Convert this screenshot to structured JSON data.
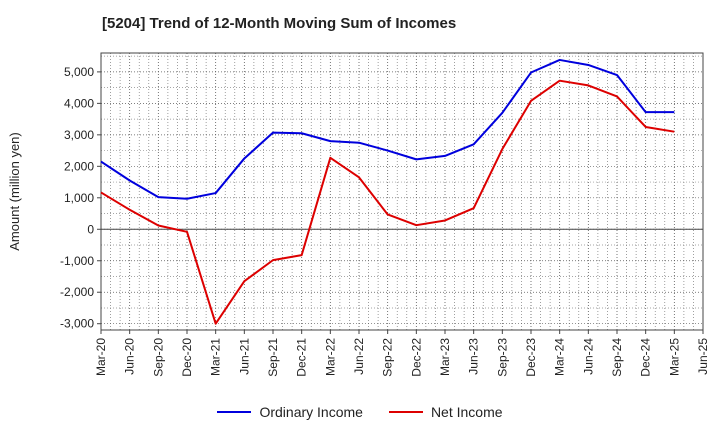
{
  "title": "[5204]  Trend of 12-Month Moving Sum of Incomes",
  "chart_data": {
    "type": "line",
    "title": "[5204]  Trend of 12-Month Moving Sum of Incomes",
    "xlabel": "",
    "ylabel": "Amount (million yen)",
    "ylim": [
      -3200,
      5600
    ],
    "yticks": [
      -3000,
      -2000,
      -1000,
      0,
      1000,
      2000,
      3000,
      4000,
      5000
    ],
    "ytick_labels": [
      "-3,000",
      "-2,000",
      "-1,000",
      "0",
      "1,000",
      "2,000",
      "3,000",
      "4,000",
      "5,000"
    ],
    "grid": true,
    "legend": "bottom",
    "categories": [
      "Mar-20",
      "Jun-20",
      "Sep-20",
      "Dec-20",
      "Mar-21",
      "Jun-21",
      "Sep-21",
      "Dec-21",
      "Mar-22",
      "Jun-22",
      "Sep-22",
      "Dec-22",
      "Mar-23",
      "Jun-23",
      "Sep-23",
      "Dec-23",
      "Mar-24",
      "Jun-24",
      "Sep-24",
      "Dec-24",
      "Mar-25",
      "Jun-25"
    ],
    "series": [
      {
        "name": "Ordinary Income",
        "color": "#0000dd",
        "values": [
          2150,
          1550,
          1020,
          970,
          1150,
          2250,
          3070,
          3050,
          2800,
          2750,
          2500,
          2220,
          2330,
          2700,
          3700,
          4980,
          5380,
          5220,
          4900,
          3720,
          3720,
          null
        ]
      },
      {
        "name": "Net Income",
        "color": "#dd0000",
        "values": [
          1170,
          620,
          120,
          -80,
          -3000,
          -1650,
          -980,
          -820,
          2270,
          1650,
          470,
          130,
          280,
          670,
          2550,
          4080,
          4720,
          4570,
          4220,
          3250,
          3100,
          null
        ]
      }
    ]
  }
}
